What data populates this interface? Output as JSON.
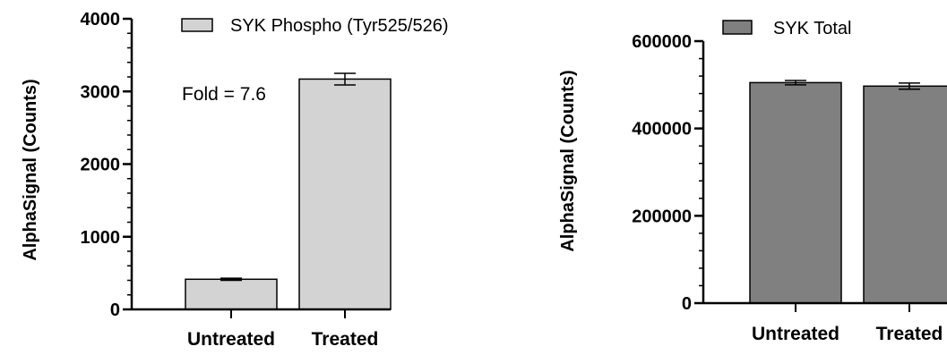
{
  "chart_data": [
    {
      "type": "bar",
      "categories": [
        "Untreated",
        "Treated"
      ],
      "series": [
        {
          "name": "SYK Phospho (Tyr525/526)",
          "values": [
            415,
            3170
          ],
          "errors": [
            15,
            80
          ],
          "color": "#d3d3d3"
        }
      ],
      "ylabel": "AlphaSignal (Counts)",
      "ylim": [
        0,
        4000
      ],
      "yticks": [
        0,
        1000,
        2000,
        3000,
        4000
      ],
      "yticks_labels": [
        "0",
        "1000",
        "2000",
        "3000",
        "4000"
      ],
      "minor_ticks": 4,
      "annotation": "Fold = 7.6",
      "legend": "top-right",
      "grid": false
    },
    {
      "type": "bar",
      "categories": [
        "Untreated",
        "Treated"
      ],
      "series": [
        {
          "name": "SYK Total",
          "values": [
            505000,
            497000
          ],
          "errors": [
            5000,
            7000
          ],
          "color": "#808080"
        }
      ],
      "ylabel": "AlphaSignal (Counts)",
      "ylim": [
        0,
        600000
      ],
      "yticks": [
        0,
        200000,
        400000,
        600000
      ],
      "yticks_labels": [
        "0",
        "200000",
        "400000",
        "600000"
      ],
      "minor_ticks": 4,
      "legend": "top-left",
      "grid": false
    }
  ]
}
